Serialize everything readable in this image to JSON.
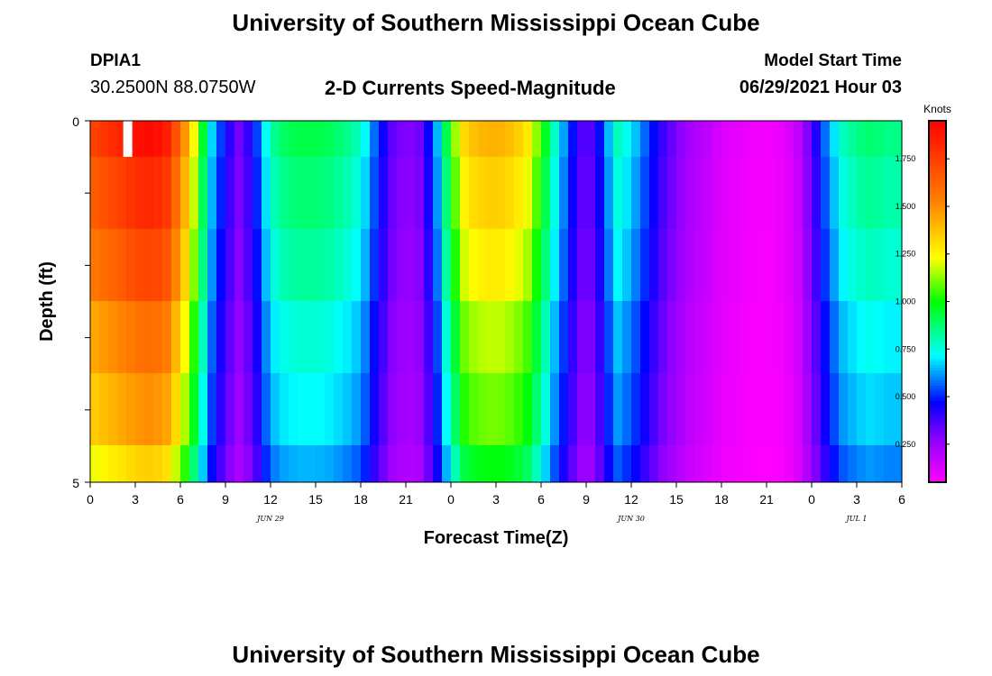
{
  "header": {
    "title": "University of Southern Mississippi Ocean Cube",
    "station": "DPIA1",
    "coords": "30.2500N  88.0750W",
    "chart_title": "2-D Currents Speed-Magnitude",
    "start_label": "Model Start Time",
    "start_time": "06/29/2021 Hour 03"
  },
  "footer": {
    "title": "University of Southern Mississippi Ocean Cube"
  },
  "chart_data": {
    "type": "heatmap",
    "title": "2-D Currents Speed-Magnitude",
    "xlabel": "Forecast Time(Z)",
    "ylabel": "Depth (ft)",
    "x_range": [
      0,
      54
    ],
    "y_range": [
      0,
      5
    ],
    "x_tick_values": [
      0,
      3,
      6,
      9,
      12,
      15,
      18,
      21,
      24,
      27,
      30,
      33,
      36,
      39,
      42,
      45,
      48,
      51,
      54
    ],
    "x_tick_labels": [
      "0",
      "3",
      "6",
      "9",
      "12",
      "15",
      "18",
      "21",
      "0",
      "3",
      "6",
      "9",
      "12",
      "15",
      "18",
      "21",
      "0",
      "3",
      "6"
    ],
    "y_tick_labels": [
      "0",
      "5"
    ],
    "date_labels": [
      {
        "hour": 12,
        "text": "JUN 29"
      },
      {
        "hour": 36,
        "text": "JUN 30"
      },
      {
        "hour": 51,
        "text": "JUL 1"
      }
    ],
    "colorbar": {
      "label": "Knots",
      "min": 0.05,
      "max": 1.95,
      "ticks": [
        "1.750",
        "1.500",
        "1.250",
        "1.000",
        "0.750",
        "0.500",
        "0.250"
      ],
      "tick_values": [
        1.75,
        1.5,
        1.25,
        1.0,
        0.75,
        0.5,
        0.25
      ]
    },
    "depth_levels": [
      0.25,
      1.0,
      2.0,
      3.0,
      4.0,
      4.75
    ],
    "depth_profile": [
      1.0,
      0.95,
      0.9,
      0.83,
      0.78,
      0.7
    ],
    "surface_speed_by_hour": [
      1.72,
      1.78,
      1.83,
      1.9,
      1.92,
      1.88,
      1.6,
      1.2,
      0.7,
      0.45,
      0.3,
      0.5,
      0.82,
      0.9,
      0.92,
      0.92,
      0.9,
      0.85,
      0.78,
      0.55,
      0.35,
      0.28,
      0.32,
      0.6,
      1.05,
      1.35,
      1.4,
      1.42,
      1.38,
      1.3,
      1.05,
      0.75,
      0.5,
      0.3,
      0.5,
      0.8,
      0.7,
      0.55,
      0.4,
      0.3,
      0.22,
      0.18,
      0.12,
      0.1,
      0.08,
      0.07,
      0.09,
      0.15,
      0.35,
      0.6,
      0.78,
      0.85,
      0.88,
      0.85
    ],
    "missing_cells": [
      {
        "hour": 2.5,
        "depth_level": 0
      }
    ]
  }
}
